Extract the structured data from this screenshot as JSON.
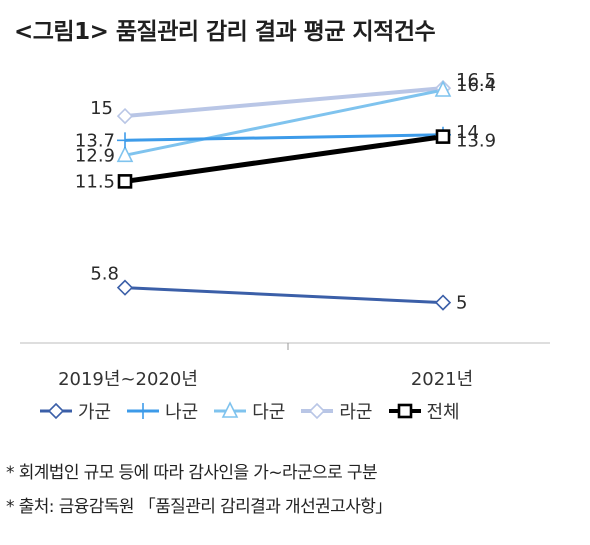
{
  "title": "<그림1> 품질관리 감리 결과 평균 지적건수",
  "chart_data": {
    "type": "line",
    "categories": [
      "2019년~2020년",
      "2021년"
    ],
    "ylim": [
      3,
      18
    ],
    "grid": false,
    "legend_position": "bottom",
    "series": [
      {
        "name": "가군",
        "values": [
          5.8,
          5
        ],
        "labels": [
          "5.8",
          "5"
        ],
        "color": "#3b5fa8",
        "marker": "diamond",
        "width": 3
      },
      {
        "name": "나군",
        "values": [
          13.7,
          14
        ],
        "labels": [
          "13.7",
          "14"
        ],
        "color": "#3d9be9",
        "marker": "plus",
        "width": 3
      },
      {
        "name": "다군",
        "values": [
          12.9,
          16.4
        ],
        "labels": [
          "12.9",
          "16.4"
        ],
        "color": "#7fc3ee",
        "marker": "triangle",
        "width": 3
      },
      {
        "name": "라군",
        "values": [
          15,
          16.5
        ],
        "labels": [
          "15",
          "16.5"
        ],
        "color": "#b9c6e6",
        "marker": "diamond",
        "width": 4
      },
      {
        "name": "전체",
        "values": [
          11.5,
          13.9
        ],
        "labels": [
          "11.5",
          "13.9"
        ],
        "color": "#000000",
        "marker": "square",
        "width": 5
      }
    ]
  },
  "notes": [
    "* 회계법인 규모 등에 따라 감사인을 가~라군으로 구분",
    "* 출처: 금융감독원 「품질관리 감리결과 개선권고사항」"
  ]
}
